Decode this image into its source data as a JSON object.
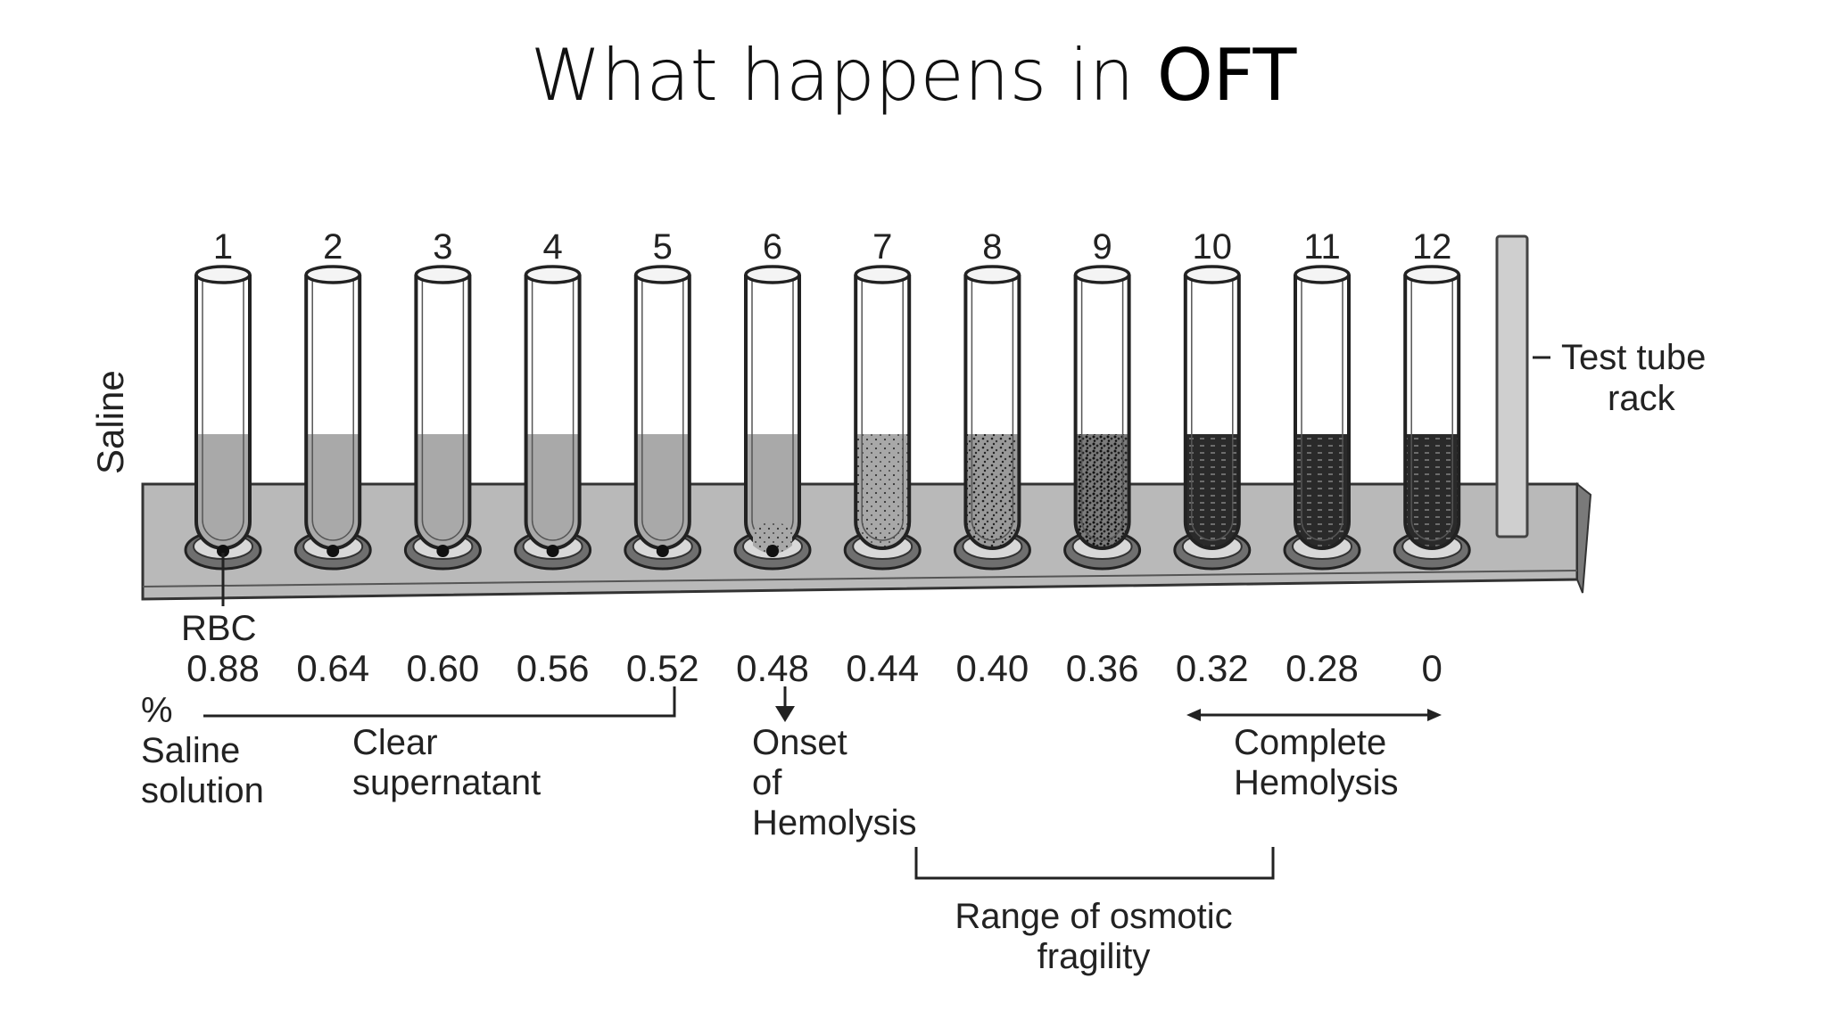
{
  "slide": {
    "title_prefix": "What happens in ",
    "title_bold": "OFT"
  },
  "diagram": {
    "side_label": "Saline",
    "rack_label_line1": "Test tube",
    "rack_label_line2": "rack",
    "rbc_label": "RBC",
    "percent_label": "%",
    "saline_label_line1": "Saline",
    "saline_label_line2": "solution",
    "clear_label_line1": "Clear",
    "clear_label_line2": "supernatant",
    "onset_label_line1": "Onset",
    "onset_label_line2": "of",
    "onset_label_line3": "Hemolysis",
    "complete_label_line1": "Complete",
    "complete_label_line2": "Hemolysis",
    "range_label_line1": "Range of osmotic",
    "range_label_line2": "fragility",
    "tubes": [
      {
        "number": "1",
        "concentration": "0.88",
        "state": "clear"
      },
      {
        "number": "2",
        "concentration": "0.64",
        "state": "clear"
      },
      {
        "number": "3",
        "concentration": "0.60",
        "state": "clear"
      },
      {
        "number": "4",
        "concentration": "0.56",
        "state": "clear"
      },
      {
        "number": "5",
        "concentration": "0.52",
        "state": "clear"
      },
      {
        "number": "6",
        "concentration": "0.48",
        "state": "onset"
      },
      {
        "number": "7",
        "concentration": "0.44",
        "state": "partial-light"
      },
      {
        "number": "8",
        "concentration": "0.40",
        "state": "partial-medium"
      },
      {
        "number": "9",
        "concentration": "0.36",
        "state": "partial-heavy"
      },
      {
        "number": "10",
        "concentration": "0.32",
        "state": "complete"
      },
      {
        "number": "11",
        "concentration": "0.28",
        "state": "complete"
      },
      {
        "number": "12",
        "concentration": "0",
        "state": "complete"
      }
    ]
  }
}
